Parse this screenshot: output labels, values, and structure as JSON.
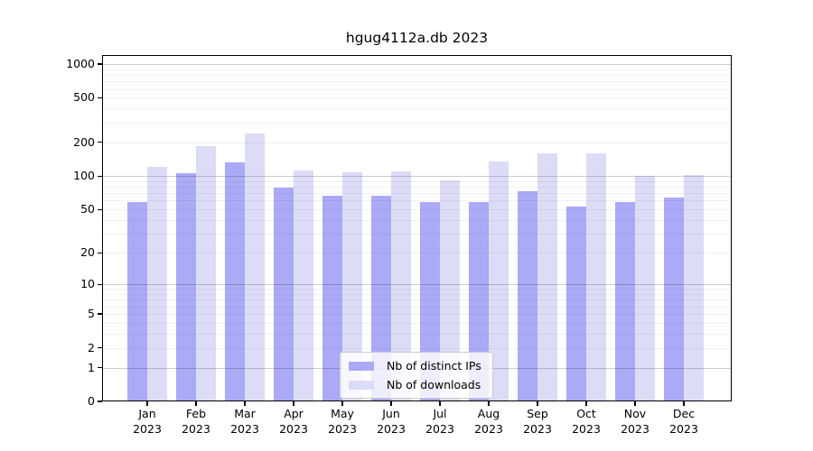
{
  "chart_data": {
    "type": "bar",
    "title": "hgug4112a.db 2023",
    "x_year": "2023",
    "categories": [
      "Jan",
      "Feb",
      "Mar",
      "Apr",
      "May",
      "Jun",
      "Jul",
      "Aug",
      "Sep",
      "Oct",
      "Nov",
      "Dec"
    ],
    "series": [
      {
        "name": "Nb of distinct IPs",
        "color": "#abaaf6",
        "values": [
          58,
          106,
          132,
          79,
          67,
          66,
          58,
          58,
          73,
          53,
          58,
          64
        ]
      },
      {
        "name": "Nb of downloads",
        "color": "#dcdcf7",
        "values": [
          120,
          186,
          241,
          112,
          108,
          110,
          92,
          136,
          161,
          159,
          101,
          103
        ]
      }
    ],
    "y_ticks": [
      1000,
      500,
      200,
      100,
      50,
      20,
      10,
      5,
      2,
      1,
      0
    ],
    "ylim": [
      0,
      1200
    ],
    "scale": "log10(value+1)",
    "grid": true,
    "legend_position": "bottom-center",
    "xlabel": "",
    "ylabel": ""
  },
  "colors": {
    "major_grid": "#cccccc",
    "minor_grid": "#ececec",
    "axis": "#000000",
    "background": "#ffffff"
  }
}
